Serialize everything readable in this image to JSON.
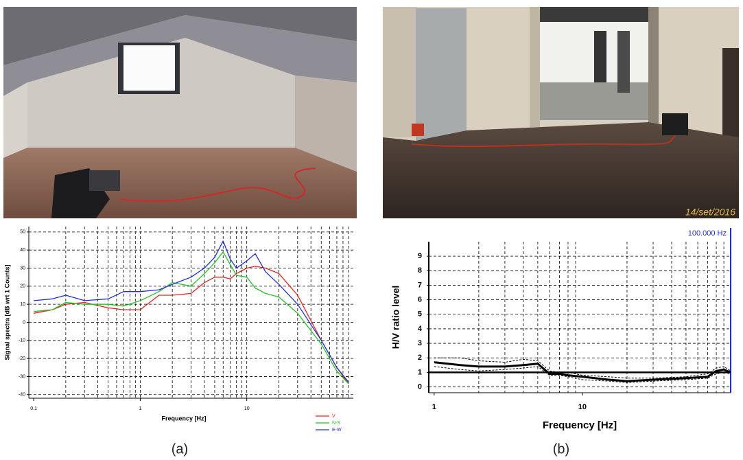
{
  "photos": [
    {
      "caption": "(a)"
    },
    {
      "caption": "(b)",
      "timestamp": "14/set/2016"
    }
  ],
  "chart_data": [
    {
      "type": "line",
      "x_label": "Frequency [Hz]",
      "y_label": "Signal spectra [dB wrt 1 Counts]",
      "log_x": true,
      "grid": true,
      "legend": "bottom-right",
      "x": [
        0.1,
        0.15,
        0.2,
        0.3,
        0.5,
        0.7,
        1,
        1.5,
        2,
        3,
        4,
        5,
        6,
        7,
        8,
        10,
        12,
        15,
        20,
        30,
        50,
        70,
        90
      ],
      "series": [
        {
          "name": "V",
          "color": "#e8211c",
          "values": [
            5,
            7,
            10,
            11,
            8,
            7,
            7,
            15,
            15,
            16,
            22,
            25,
            25,
            24,
            27,
            30,
            31,
            30,
            27,
            15,
            -10,
            -25,
            -34
          ]
        },
        {
          "name": "N-S",
          "color": "#22c322",
          "values": [
            6,
            7,
            11,
            10,
            10,
            9,
            12,
            17,
            22,
            20,
            27,
            33,
            39,
            32,
            26,
            25,
            19,
            16,
            14,
            5,
            -12,
            -27,
            -34
          ]
        },
        {
          "name": "E-W",
          "color": "#1f2ee0",
          "values": [
            12,
            13,
            15,
            12,
            13,
            17,
            17,
            18,
            21,
            25,
            30,
            36,
            45,
            35,
            30,
            34,
            38,
            28,
            21,
            10,
            -10,
            -25,
            -33
          ]
        }
      ],
      "xlim": [
        0.09,
        100
      ],
      "xticks": [
        0.1,
        1,
        10
      ],
      "xgrid": [
        0.2,
        0.3,
        0.4,
        0.5,
        0.6,
        0.7,
        0.8,
        0.9,
        1,
        2,
        3,
        4,
        5,
        6,
        7,
        8,
        9,
        10,
        20,
        30,
        40,
        50,
        60,
        70,
        80,
        90
      ],
      "ylim": [
        -42,
        53
      ],
      "yticks": [
        -40,
        -30,
        -20,
        -10,
        0,
        10,
        20,
        30,
        40,
        50
      ]
    },
    {
      "type": "line",
      "x_label": "Frequency [Hz]",
      "y_label": "H/V ratio level",
      "log_x": true,
      "grid": true,
      "reference_line": 1,
      "cursor_x": 100,
      "cursor_label": "100.000 Hz",
      "x": [
        1,
        1.5,
        2,
        3,
        4,
        5,
        6,
        7,
        8,
        10,
        15,
        20,
        30,
        50,
        70,
        80,
        90,
        100
      ],
      "series": [
        {
          "color": "#000000",
          "width": 3,
          "dashed": false,
          "values": [
            1.7,
            1.5,
            1.4,
            1.4,
            1.5,
            1.6,
            0.9,
            0.9,
            0.8,
            0.7,
            0.5,
            0.4,
            0.5,
            0.6,
            0.7,
            1.1,
            1.2,
            1.0
          ]
        },
        {
          "color": "#000000",
          "width": 1,
          "dashed": true,
          "values": [
            2.0,
            2.0,
            1.8,
            1.7,
            1.9,
            1.8,
            1.1,
            1.0,
            1.0,
            0.8,
            0.7,
            0.6,
            0.6,
            0.7,
            0.9,
            1.3,
            1.4,
            1.1
          ]
        },
        {
          "color": "#000000",
          "width": 1,
          "dashed": true,
          "values": [
            1.4,
            1.2,
            1.1,
            1.2,
            1.3,
            1.4,
            0.8,
            0.8,
            0.7,
            0.5,
            0.4,
            0.3,
            0.4,
            0.5,
            0.6,
            0.9,
            1.0,
            0.9
          ]
        }
      ],
      "xlim": [
        0.92,
        100
      ],
      "xticks": [
        1,
        10
      ],
      "xgrid": [
        2,
        3,
        4,
        5,
        6,
        7,
        8,
        9,
        20,
        30,
        40,
        50,
        60,
        70,
        80,
        90
      ],
      "ylim": [
        -0.4,
        10
      ],
      "yticks": [
        0,
        1,
        2,
        3,
        4,
        5,
        6,
        7,
        8,
        9
      ]
    }
  ]
}
